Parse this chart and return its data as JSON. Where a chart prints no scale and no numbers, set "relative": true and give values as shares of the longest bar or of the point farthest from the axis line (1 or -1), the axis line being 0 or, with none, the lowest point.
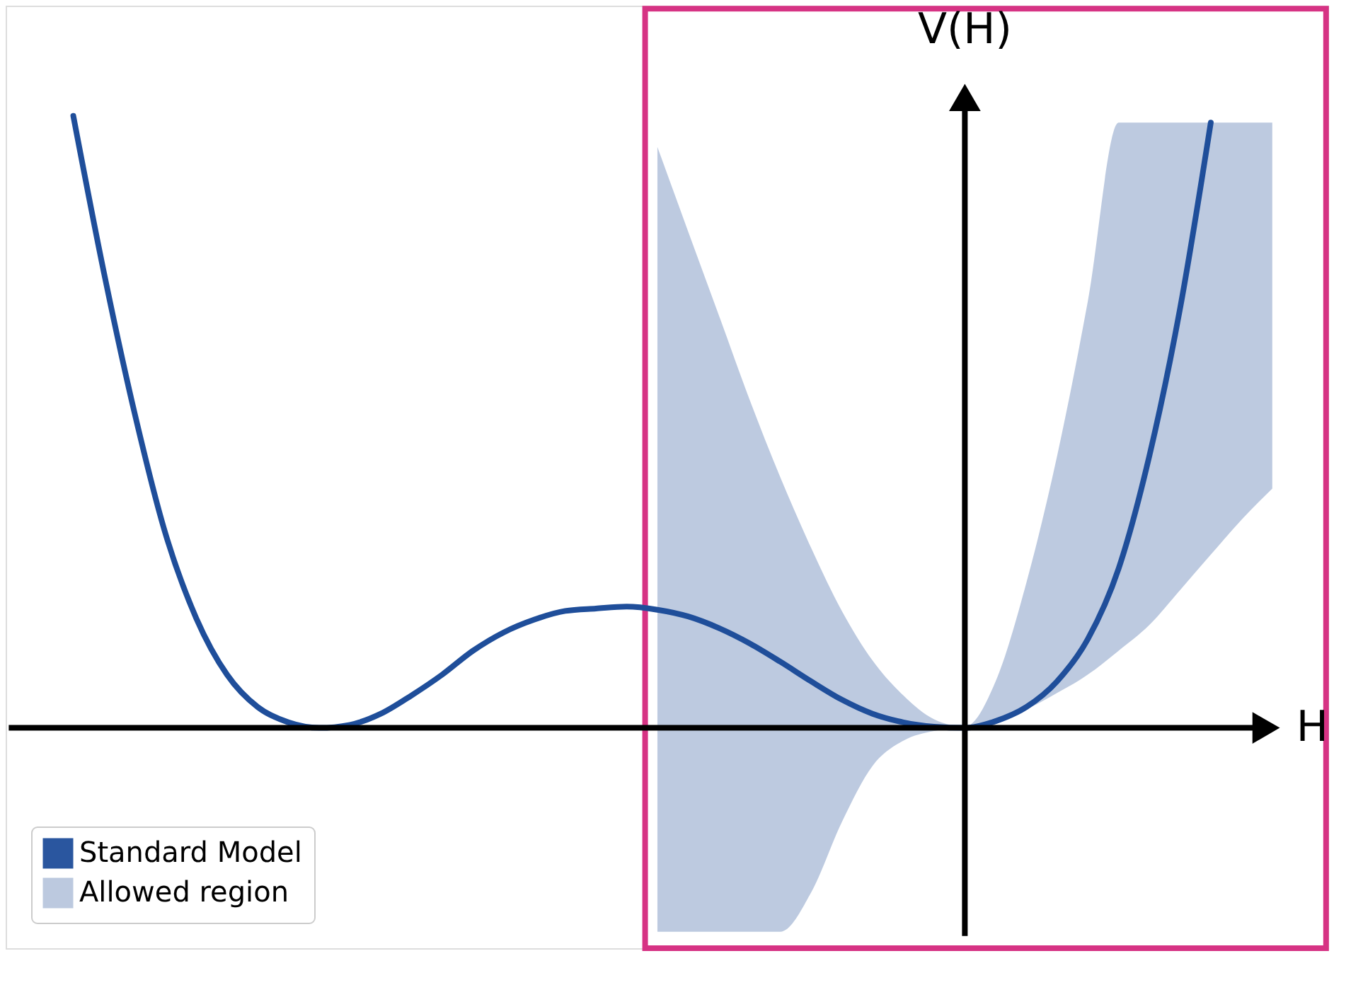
{
  "chart_data": {
    "type": "line",
    "relative": true,
    "xlabel": "H",
    "ylabel": "V(H)",
    "categories": [
      null,
      null,
      null,
      null,
      null,
      null,
      null,
      null,
      null,
      null,
      null,
      null,
      null,
      null,
      null,
      null,
      null,
      null,
      null,
      null,
      null,
      null,
      null,
      null,
      null,
      null,
      null,
      null,
      null,
      null,
      null,
      null,
      null,
      null,
      null,
      null,
      null,
      null,
      null,
      null
    ],
    "series": [
      {
        "name": "Standard Model",
        "color": "#1f4e9a",
        "values": [
          1.0,
          0.743,
          0.513,
          0.317,
          0.179,
          0.087,
          0.034,
          0.009,
          0,
          0.005,
          0.023,
          0.053,
          0.087,
          0.126,
          0.156,
          0.177,
          0.191,
          0.195,
          0.198,
          0.193,
          0.182,
          0.163,
          0.138,
          0.108,
          0.076,
          0.046,
          0.023,
          0.009,
          0.002,
          0,
          0.011,
          0.034,
          0.076,
          0.145,
          0.26,
          0.444,
          0.685,
          0.989,
          null,
          null
        ]
      },
      {
        "name": "Allowed region",
        "color": "#b9c7de",
        "values": [
          null,
          null,
          null,
          null,
          null,
          null,
          null,
          null,
          null,
          null,
          null,
          null,
          null,
          null,
          null,
          null,
          null,
          null,
          null,
          null,
          null,
          null,
          null,
          null,
          null,
          null,
          null,
          null,
          null,
          null,
          null,
          null,
          null,
          null,
          null,
          null,
          null,
          null,
          null,
          null
        ],
        "lower": [
          null,
          null,
          null,
          null,
          null,
          null,
          null,
          null,
          null,
          null,
          null,
          null,
          null,
          null,
          null,
          null,
          null,
          null,
          null,
          -0.333,
          -0.333,
          -0.333,
          -0.333,
          -0.333,
          -0.269,
          -0.154,
          -0.062,
          -0.021,
          -0.005,
          0,
          0.011,
          0.03,
          0.057,
          0.087,
          0.126,
          0.168,
          0.225,
          0.283,
          0.34,
          0.391
        ],
        "upper": [
          null,
          null,
          null,
          null,
          null,
          null,
          null,
          null,
          null,
          null,
          null,
          null,
          null,
          null,
          null,
          null,
          null,
          null,
          null,
          0.949,
          0.811,
          0.674,
          0.536,
          0.409,
          0.294,
          0.191,
          0.11,
          0.053,
          0.014,
          0.002,
          0.076,
          0.237,
          0.444,
          0.697,
          0.989,
          0.989,
          0.989,
          0.989,
          0.989,
          0.989
        ]
      }
    ],
    "legend": "bottom left"
  }
}
